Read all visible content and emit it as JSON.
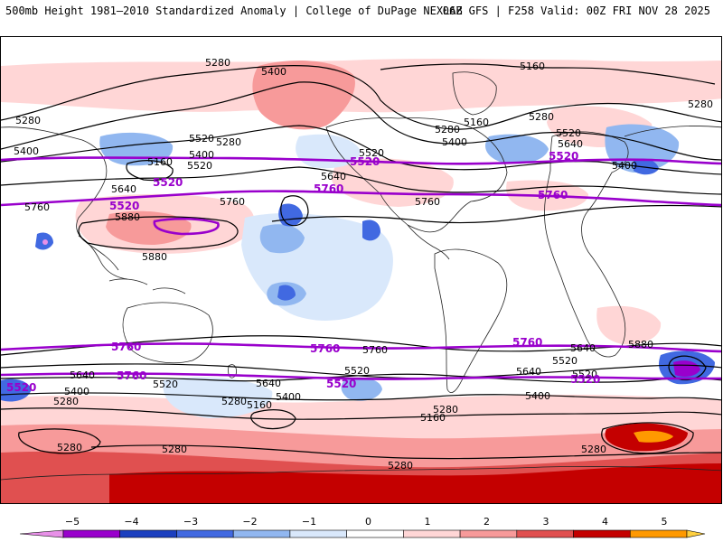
{
  "header": {
    "left_title": "500mb Height 1981–2010 Standardized Anomaly | College of DuPage NEXLAB",
    "right_title": "06Z GFS | F258 Valid: 00Z FRI NOV 28 2025"
  },
  "map": {
    "projection": "global cylindrical",
    "contour_labels_black": [
      "5280",
      "5400",
      "5160",
      "5280",
      "5160",
      "5280",
      "5400",
      "5520",
      "5640",
      "5160",
      "5400",
      "5520",
      "5280",
      "5520",
      "5280",
      "5640",
      "5400",
      "5640",
      "5760",
      "5520",
      "5400",
      "5280",
      "5760",
      "5880",
      "5880",
      "5760",
      "5640",
      "5520",
      "5400",
      "5280",
      "5640",
      "5520",
      "5760",
      "5640",
      "5520",
      "5400",
      "5280",
      "5160",
      "5520",
      "5640",
      "5400",
      "5160",
      "5280",
      "5280",
      "5280",
      "5280",
      "5280",
      "5880"
    ],
    "contour_labels_purple": [
      "5520",
      "5520",
      "5760",
      "5760",
      "5520",
      "5520",
      "5760",
      "5760",
      "5760",
      "5760",
      "5520",
      "5520",
      "5520"
    ]
  },
  "colorbar": {
    "ticks": [
      "−5",
      "−4",
      "−3",
      "−2",
      "−1",
      "0",
      "1",
      "2",
      "3",
      "4",
      "5"
    ],
    "colors": [
      "#e890e8",
      "#9900cc",
      "#1b3fbf",
      "#4169e1",
      "#91b7f0",
      "#d9e8fb",
      "#ffffff",
      "#ffd6d6",
      "#f79a9a",
      "#e05050",
      "#c40000",
      "#ff9900",
      "#ffd040"
    ]
  }
}
